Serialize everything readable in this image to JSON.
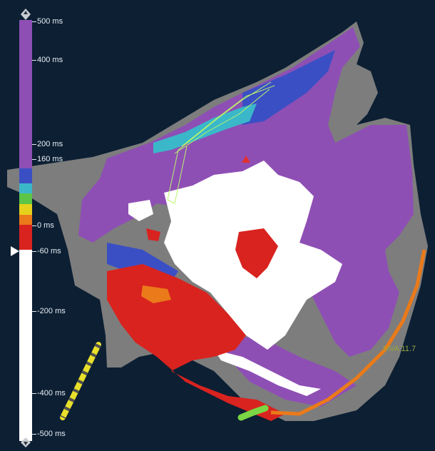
{
  "scale": {
    "labels": [
      "500 ms",
      "400 ms",
      "200 ms",
      "160 ms",
      "0 ms",
      "-60 ms",
      "-200 ms",
      "-400 ms",
      "-500 ms"
    ],
    "colors": {
      "late": "#8e4fb5",
      "blue": "#3b4fc4",
      "cyan": "#3ab8c9",
      "green": "#5cc447",
      "yellow": "#e6d21c",
      "orange": "#ea7a1a",
      "red": "#d9231f",
      "unmapped": "#ffffff",
      "scar": "#8a8a8a"
    }
  },
  "status": {
    "mva": "MVA 11.7"
  },
  "icons": {
    "scale_top_handle": "diamond-arrow-icon",
    "scale_bottom_handle": "diamond-arrow-icon",
    "window_marker": "triangle-pointer-icon"
  }
}
